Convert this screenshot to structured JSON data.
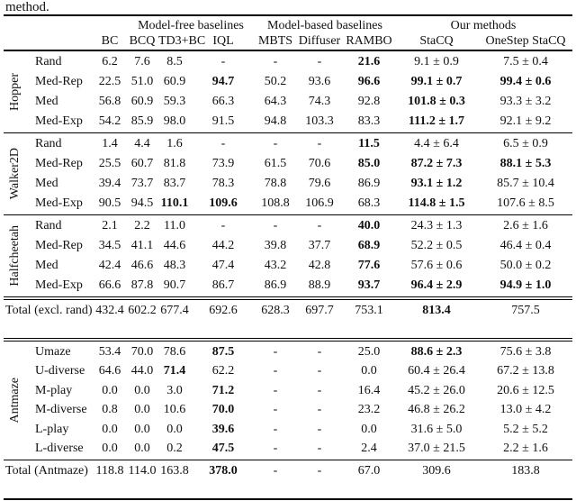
{
  "caption_tail": "method.",
  "header": {
    "groups": [
      {
        "label": "Model-free baselines"
      },
      {
        "label": "Model-based baselines"
      },
      {
        "label": "Our methods"
      }
    ],
    "columns": [
      "BC",
      "BCQ",
      "TD3+BC",
      "IQL",
      "MBTS",
      "Diffuser",
      "RAMBO",
      "StaCQ",
      "OneStep StaCQ"
    ]
  },
  "sections": [
    {
      "group": "Hopper",
      "rows": [
        {
          "label": "Rand",
          "values": [
            "6.2",
            "7.6",
            "8.5",
            "-",
            "-",
            "-",
            "21.6",
            "9.1 ± 0.9",
            "7.5 ± 0.4"
          ],
          "bold": [
            6
          ]
        },
        {
          "label": "Med-Rep",
          "values": [
            "22.5",
            "51.0",
            "60.9",
            "94.7",
            "50.2",
            "93.6",
            "96.6",
            "99.1 ± 0.7",
            "99.4 ± 0.6"
          ],
          "bold": [
            3,
            6,
            7,
            8
          ]
        },
        {
          "label": "Med",
          "values": [
            "56.8",
            "60.9",
            "59.3",
            "66.3",
            "64.3",
            "74.3",
            "92.8",
            "101.8 ± 0.3",
            "93.3 ± 3.2"
          ],
          "bold": [
            7
          ]
        },
        {
          "label": "Med-Exp",
          "values": [
            "54.2",
            "85.9",
            "98.0",
            "91.5",
            "94.8",
            "103.3",
            "83.3",
            "111.2 ± 1.7",
            "92.1 ± 9.2"
          ],
          "bold": [
            7
          ]
        }
      ]
    },
    {
      "group": "Walker2D",
      "rows": [
        {
          "label": "Rand",
          "values": [
            "1.4",
            "4.4",
            "1.6",
            "-",
            "-",
            "-",
            "11.5",
            "4.4 ± 6.4",
            "6.5 ± 0.9"
          ],
          "bold": [
            6
          ]
        },
        {
          "label": "Med-Rep",
          "values": [
            "25.5",
            "60.7",
            "81.8",
            "73.9",
            "61.5",
            "70.6",
            "85.0",
            "87.2 ± 7.3",
            "88.1 ± 5.3"
          ],
          "bold": [
            6,
            7,
            8
          ]
        },
        {
          "label": "Med",
          "values": [
            "39.4",
            "73.7",
            "83.7",
            "78.3",
            "78.8",
            "79.6",
            "86.9",
            "93.1 ± 1.2",
            "85.7 ± 10.4"
          ],
          "bold": [
            7
          ]
        },
        {
          "label": "Med-Exp",
          "values": [
            "90.5",
            "94.5",
            "110.1",
            "109.6",
            "108.8",
            "106.9",
            "68.3",
            "114.8 ± 1.5",
            "107.6 ± 8.5"
          ],
          "bold": [
            2,
            3,
            7
          ]
        }
      ]
    },
    {
      "group": "Halfcheetah",
      "rows": [
        {
          "label": "Rand",
          "values": [
            "2.1",
            "2.2",
            "11.0",
            "-",
            "-",
            "-",
            "40.0",
            "24.3 ± 1.3",
            "2.6 ± 1.6"
          ],
          "bold": [
            6
          ]
        },
        {
          "label": "Med-Rep",
          "values": [
            "34.5",
            "41.1",
            "44.6",
            "44.2",
            "39.8",
            "37.7",
            "68.9",
            "52.2 ± 0.5",
            "46.4 ± 0.4"
          ],
          "bold": [
            6
          ]
        },
        {
          "label": "Med",
          "values": [
            "42.4",
            "46.6",
            "48.3",
            "47.4",
            "43.2",
            "42.8",
            "77.6",
            "57.6 ± 0.6",
            "50.0 ± 0.2"
          ],
          "bold": [
            6
          ]
        },
        {
          "label": "Med-Exp",
          "values": [
            "66.6",
            "87.8",
            "90.7",
            "86.7",
            "86.9",
            "88.9",
            "93.7",
            "96.4 ± 2.9",
            "94.9 ± 1.0"
          ],
          "bold": [
            6,
            7,
            8
          ]
        }
      ]
    },
    {
      "group": "Antmaze",
      "rows": [
        {
          "label": "Umaze",
          "values": [
            "53.4",
            "70.0",
            "78.6",
            "87.5",
            "-",
            "-",
            "25.0",
            "88.6 ± 2.3",
            "75.6 ± 3.8"
          ],
          "bold": [
            3,
            7
          ]
        },
        {
          "label": "U-diverse",
          "values": [
            "64.6",
            "44.0",
            "71.4",
            "62.2",
            "-",
            "-",
            "0.0",
            "60.4 ± 26.4",
            "67.2 ± 13.8"
          ],
          "bold": [
            2
          ]
        },
        {
          "label": "M-play",
          "values": [
            "0.0",
            "0.0",
            "3.0",
            "71.2",
            "-",
            "-",
            "16.4",
            "45.2 ± 26.0",
            "20.6 ± 12.5"
          ],
          "bold": [
            3
          ]
        },
        {
          "label": "M-diverse",
          "values": [
            "0.8",
            "0.0",
            "10.6",
            "70.0",
            "-",
            "-",
            "23.2",
            "46.8 ± 26.2",
            "13.0 ± 4.2"
          ],
          "bold": [
            3
          ]
        },
        {
          "label": "L-play",
          "values": [
            "0.0",
            "0.0",
            "0.0",
            "39.6",
            "-",
            "-",
            "0.0",
            "31.6 ± 5.0",
            "5.2 ± 5.2"
          ],
          "bold": [
            3
          ]
        },
        {
          "label": "L-diverse",
          "values": [
            "0.0",
            "0.0",
            "0.2",
            "47.5",
            "-",
            "-",
            "2.4",
            "37.0 ± 21.5",
            "2.2 ± 1.6"
          ],
          "bold": [
            3
          ]
        }
      ]
    }
  ],
  "totals": [
    {
      "label": "Total (excl. rand)",
      "values": [
        "432.4",
        "602.2",
        "677.4",
        "692.6",
        "628.3",
        "697.7",
        "753.1",
        "813.4",
        "757.5"
      ],
      "bold": [
        7
      ]
    },
    {
      "label": "Total (Antmaze)",
      "values": [
        "118.8",
        "114.0",
        "163.8",
        "378.0",
        "-",
        "-",
        "67.0",
        "309.6",
        "183.8"
      ],
      "bold": [
        3
      ]
    }
  ]
}
